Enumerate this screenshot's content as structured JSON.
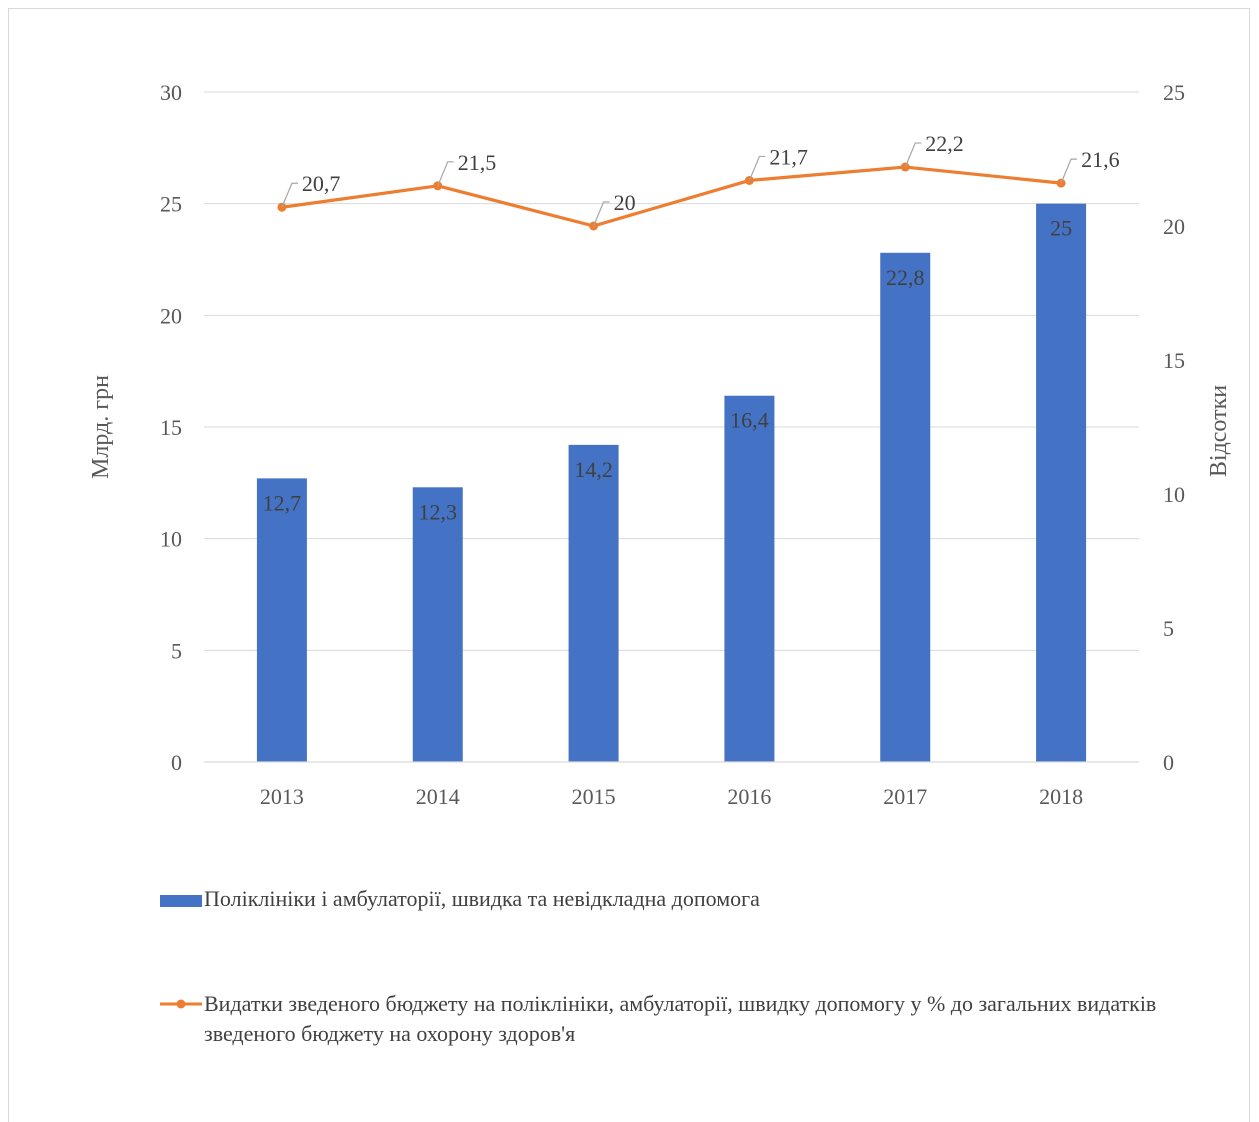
{
  "chart_data": {
    "type": "bar+line",
    "categories": [
      "2013",
      "2014",
      "2015",
      "2016",
      "2017",
      "2018"
    ],
    "series": [
      {
        "name": "Поліклініки і амбулаторії, швидка та невідкладна допомога",
        "type": "bar",
        "axis": "left",
        "color": "#4472c4",
        "values": [
          12.7,
          12.3,
          14.2,
          16.4,
          22.8,
          25
        ],
        "labels": [
          "12,7",
          "12,3",
          "14,2",
          "16,4",
          "22,8",
          "25"
        ]
      },
      {
        "name": "Видатки зведеного бюджету на поліклініки, амбулаторії, швидку допомогу у % до загальних видатків зведеного бюджету на охорону здоров'я",
        "type": "line",
        "axis": "right",
        "color": "#ed7d31",
        "values": [
          20.7,
          21.5,
          20,
          21.7,
          22.2,
          21.6
        ],
        "labels": [
          "20,7",
          "21,5",
          "20",
          "21,7",
          "22,2",
          "21,6"
        ]
      }
    ],
    "y_left": {
      "label": "Млрд. грн",
      "min": 0,
      "max": 30,
      "ticks": [
        "0",
        "5",
        "10",
        "15",
        "20",
        "25",
        "30"
      ]
    },
    "y_right": {
      "label": "Відсотки",
      "min": 0,
      "max": 25,
      "ticks": [
        "0",
        "5",
        "10",
        "15",
        "20",
        "25"
      ]
    },
    "grid": true,
    "legend_position": "bottom"
  }
}
